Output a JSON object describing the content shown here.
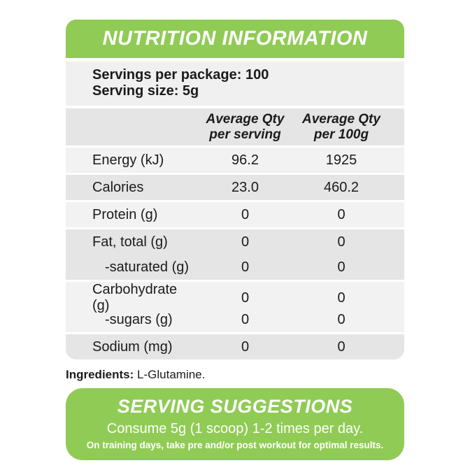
{
  "header": {
    "title": "NUTRITION INFORMATION"
  },
  "servings": {
    "per_package": "Servings per package: 100",
    "size": "Serving size: 5g"
  },
  "table": {
    "columns": {
      "per_serving": "Average Qty\nper serving",
      "per_100g": "Average Qty\nper 100g"
    },
    "rows": [
      {
        "label": "Energy (kJ)",
        "per_serving": "96.2",
        "per_100g": "1925"
      },
      {
        "label": "Calories",
        "per_serving": "23.0",
        "per_100g": "460.2"
      },
      {
        "label": "Protein (g)",
        "per_serving": "0",
        "per_100g": "0"
      },
      {
        "label": "Fat, total (g)",
        "per_serving": "0",
        "per_100g": "0"
      },
      {
        "label": "-saturated (g)",
        "per_serving": "0",
        "per_100g": "0"
      },
      {
        "label": "Carbohydrate (g)",
        "per_serving": "0",
        "per_100g": "0"
      },
      {
        "label": "-sugars (g)",
        "per_serving": "0",
        "per_100g": "0"
      },
      {
        "label": "Sodium (mg)",
        "per_serving": "0",
        "per_100g": "0"
      }
    ]
  },
  "ingredients": {
    "label": "Ingredients:",
    "value": "L-Glutamine."
  },
  "serving_suggestions": {
    "title": "SERVING SUGGESTIONS",
    "line1": "Consume 5g (1 scoop) 1-2 times per day.",
    "line2": "On training days, take pre and/or post workout for optimal results."
  },
  "colors": {
    "green": "#90cb55",
    "row_light": "#f2f2f2",
    "row_dark": "#e5e5e5",
    "servings_bg": "#f0f0f0",
    "text": "#1b1b1b",
    "white": "#ffffff"
  }
}
